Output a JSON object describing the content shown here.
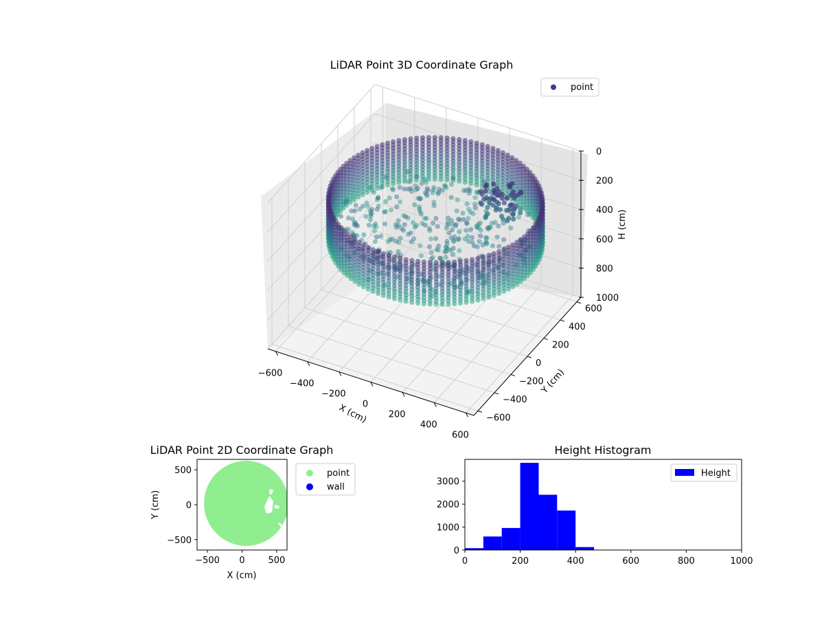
{
  "chart_data": [
    {
      "type": "scatter3d",
      "title": "LiDAR Point 3D Coordinate Graph",
      "xlabel": "X (cm)",
      "ylabel": "Y (cm)",
      "zlabel": "H (cm)",
      "xticks": [
        "−600",
        "−400",
        "−200",
        "0",
        "200",
        "400",
        "600"
      ],
      "yticks": [
        "−600",
        "−400",
        "−200",
        "0",
        "200",
        "400",
        "600"
      ],
      "zticks": [
        "0",
        "200",
        "400",
        "600",
        "800",
        "1000"
      ],
      "xlim": [
        -650,
        650
      ],
      "ylim": [
        -650,
        650
      ],
      "zlim": [
        0,
        1000
      ],
      "z_inverted": true,
      "legend": {
        "placement": "upper-right",
        "entries": [
          {
            "label": "point",
            "color": "#3b3f8f"
          }
        ]
      },
      "colormap": "viridis",
      "room": {
        "center": [
          60,
          20
        ],
        "radius": 600,
        "wall_top_h": 150,
        "wall_bottom_h": 450
      },
      "grid": true
    },
    {
      "type": "scatter",
      "title": "LiDAR Point 2D Coordinate Graph",
      "xlabel": "X (cm)",
      "ylabel": "Y (cm)",
      "xticks": [
        "−500",
        "0",
        "500"
      ],
      "yticks": [
        "500",
        "0",
        "−500"
      ],
      "xlim": [
        -650,
        650
      ],
      "ylim": [
        -650,
        650
      ],
      "legend": {
        "placement": "outside-right",
        "entries": [
          {
            "label": "point",
            "color": "#90ee90"
          },
          {
            "label": "wall",
            "color": "#0000ff"
          }
        ]
      },
      "series": [
        {
          "name": "point",
          "color": "#90ee90",
          "shape": "disc",
          "center": [
            60,
            20
          ],
          "radius": 610
        }
      ]
    },
    {
      "type": "bar",
      "title": "Height Histogram",
      "xlabel": "",
      "ylabel": "",
      "xticks": [
        "0",
        "200",
        "400",
        "600",
        "800",
        "1000"
      ],
      "yticks": [
        "0",
        "1000",
        "2000",
        "3000"
      ],
      "xlim": [
        0,
        1000
      ],
      "ylim": [
        0,
        3950
      ],
      "color": "#0000ff",
      "legend": {
        "placement": "upper-right",
        "entries": [
          {
            "label": "Height",
            "color": "#0000ff"
          }
        ]
      },
      "bin_edges": [
        0,
        66.7,
        133.3,
        200,
        266.7,
        333.3,
        400,
        466.7
      ],
      "values": [
        80,
        590,
        960,
        3800,
        2410,
        1720,
        130
      ]
    }
  ]
}
